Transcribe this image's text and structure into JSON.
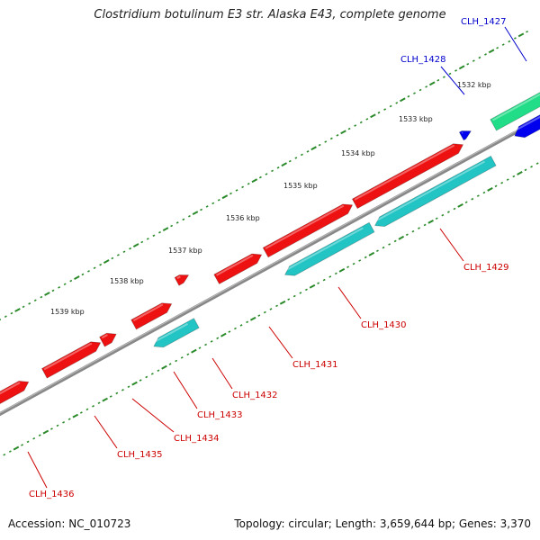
{
  "title": "Clostridium botulinum E3 str. Alaska E43, complete genome",
  "footer": {
    "accession": "Accession: NC_010723",
    "summary": "Topology: circular; Length: 3,659,644 bp; Genes: 3,370"
  },
  "kbp_labels": [
    "1532 kbp",
    "1533 kbp",
    "1534 kbp",
    "1535 kbp",
    "1536 kbp",
    "1537 kbp",
    "1538 kbp",
    "1539 kbp"
  ],
  "colors": {
    "forward_cds": "#ee1111",
    "reverse_cds": "#22c4c4",
    "blue_feature": "#0000ee",
    "green_feature": "#22dd88",
    "backbone": "#888888",
    "ticks": "#2a8a2a",
    "red_label": "#cc0000",
    "blue_label": "#0000cc"
  },
  "genes": [
    {
      "name": "CLH_1427",
      "color": "blue_label"
    },
    {
      "name": "CLH_1428",
      "color": "blue_label"
    },
    {
      "name": "CLH_1429",
      "color": "red_label"
    },
    {
      "name": "CLH_1430",
      "color": "red_label"
    },
    {
      "name": "CLH_1431",
      "color": "red_label"
    },
    {
      "name": "CLH_1432",
      "color": "red_label"
    },
    {
      "name": "CLH_1433",
      "color": "red_label"
    },
    {
      "name": "CLH_1434",
      "color": "red_label"
    },
    {
      "name": "CLH_1435",
      "color": "red_label"
    },
    {
      "name": "CLH_1436",
      "color": "red_label"
    }
  ]
}
